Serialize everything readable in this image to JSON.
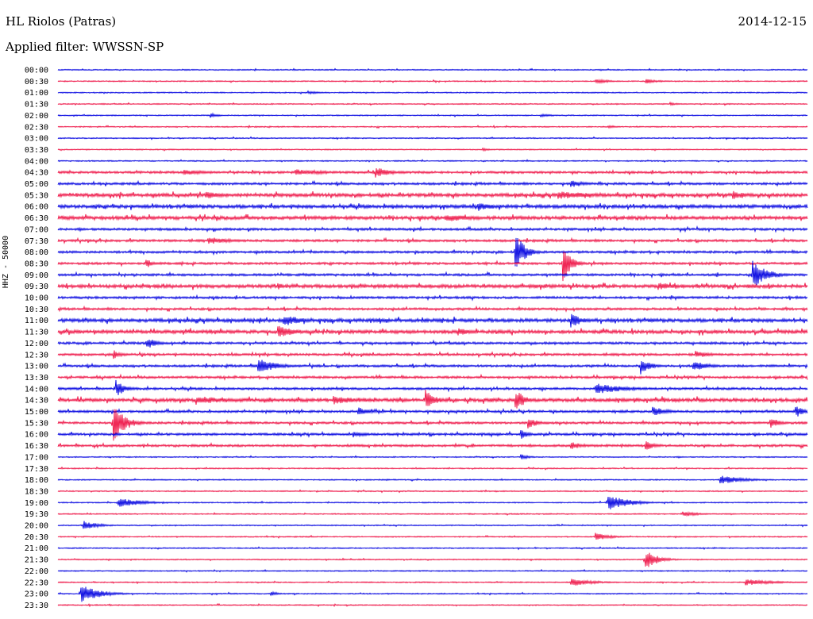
{
  "header": {
    "station": "HL Riolos (Patras)",
    "date": "2014-12-15",
    "filter": "Applied filter: WWSSN-SP"
  },
  "y_axis_label": "HHZ - 50000",
  "colors": {
    "even_row": "#0000e0",
    "odd_row": "#ee1144"
  },
  "chart_data": {
    "type": "line",
    "title": "HL Riolos (Patras)",
    "subtitle": "Applied filter: WWSSN-SP",
    "ylabel": "HHZ - 50000",
    "row_labels": [
      "00:00",
      "00:30",
      "01:00",
      "01:30",
      "02:00",
      "02:30",
      "03:00",
      "03:30",
      "04:00",
      "04:30",
      "05:00",
      "05:30",
      "06:00",
      "06:30",
      "07:00",
      "07:30",
      "08:00",
      "08:30",
      "09:00",
      "09:30",
      "10:00",
      "10:30",
      "11:00",
      "11:30",
      "12:00",
      "12:30",
      "13:00",
      "13:30",
      "14:00",
      "14:30",
      "15:00",
      "15:30",
      "16:00",
      "16:30",
      "17:00",
      "17:30",
      "18:00",
      "18:30",
      "19:00",
      "19:30",
      "20:00",
      "20:30",
      "21:00",
      "21:30",
      "22:00",
      "22:30",
      "23:00",
      "23:30"
    ],
    "row_minutes": 30,
    "noise_level": [
      1,
      1,
      1,
      1,
      1,
      1,
      1,
      1,
      1,
      2,
      2,
      3,
      3,
      3,
      2,
      2,
      2,
      2,
      2,
      3,
      2,
      2,
      3,
      3,
      2,
      2,
      2,
      2,
      2,
      3,
      2,
      2,
      2,
      2,
      1,
      1,
      1,
      1,
      1,
      1,
      1,
      1,
      1,
      1,
      1,
      1,
      1,
      1
    ],
    "events": [
      {
        "row": 1,
        "minute": 21.5,
        "amp": 3,
        "dur": 1.0
      },
      {
        "row": 1,
        "minute": 23.5,
        "amp": 3,
        "dur": 1.0
      },
      {
        "row": 2,
        "minute": 10.0,
        "amp": 2,
        "dur": 1.0
      },
      {
        "row": 3,
        "minute": 24.5,
        "amp": 2,
        "dur": 0.6
      },
      {
        "row": 4,
        "minute": 6.1,
        "amp": 3,
        "dur": 0.6
      },
      {
        "row": 4,
        "minute": 19.3,
        "amp": 2,
        "dur": 1.0
      },
      {
        "row": 5,
        "minute": 22.0,
        "amp": 2,
        "dur": 0.6
      },
      {
        "row": 7,
        "minute": 17.0,
        "amp": 2,
        "dur": 0.6
      },
      {
        "row": 9,
        "minute": 5.0,
        "amp": 4,
        "dur": 1.5
      },
      {
        "row": 9,
        "minute": 9.5,
        "amp": 4,
        "dur": 2.5
      },
      {
        "row": 9,
        "minute": 12.7,
        "amp": 7,
        "dur": 1.0
      },
      {
        "row": 10,
        "minute": 20.5,
        "amp": 5,
        "dur": 1.0
      },
      {
        "row": 11,
        "minute": 5.9,
        "amp": 5,
        "dur": 1.2
      },
      {
        "row": 11,
        "minute": 20.0,
        "amp": 5,
        "dur": 3.0
      },
      {
        "row": 11,
        "minute": 27.0,
        "amp": 6,
        "dur": 0.8
      },
      {
        "row": 12,
        "minute": 16.8,
        "amp": 6,
        "dur": 1.0
      },
      {
        "row": 13,
        "minute": 15.5,
        "amp": 5,
        "dur": 2.0
      },
      {
        "row": 15,
        "minute": 6.0,
        "amp": 5,
        "dur": 1.5
      },
      {
        "row": 16,
        "minute": 18.3,
        "amp": 26,
        "dur": 0.6
      },
      {
        "row": 17,
        "minute": 3.5,
        "amp": 7,
        "dur": 0.5
      },
      {
        "row": 17,
        "minute": 20.2,
        "amp": 25,
        "dur": 0.5
      },
      {
        "row": 18,
        "minute": 27.8,
        "amp": 18,
        "dur": 0.9
      },
      {
        "row": 19,
        "minute": 8.8,
        "amp": 5,
        "dur": 0.4
      },
      {
        "row": 19,
        "minute": 24.0,
        "amp": 5,
        "dur": 1.5
      },
      {
        "row": 22,
        "minute": 9.0,
        "amp": 8,
        "dur": 1.2
      },
      {
        "row": 22,
        "minute": 20.5,
        "amp": 10,
        "dur": 0.8
      },
      {
        "row": 23,
        "minute": 8.8,
        "amp": 8,
        "dur": 1.2
      },
      {
        "row": 23,
        "minute": 16.0,
        "amp": 5,
        "dur": 1.0
      },
      {
        "row": 24,
        "minute": 3.5,
        "amp": 5,
        "dur": 1.0
      },
      {
        "row": 24,
        "minute": 3.6,
        "amp": 7,
        "dur": 0.6
      },
      {
        "row": 25,
        "minute": 2.2,
        "amp": 6,
        "dur": 0.6
      },
      {
        "row": 25,
        "minute": 25.5,
        "amp": 5,
        "dur": 1.0
      },
      {
        "row": 26,
        "minute": 8.0,
        "amp": 10,
        "dur": 1.2
      },
      {
        "row": 26,
        "minute": 23.3,
        "amp": 12,
        "dur": 0.6
      },
      {
        "row": 26,
        "minute": 25.4,
        "amp": 7,
        "dur": 1.0
      },
      {
        "row": 28,
        "minute": 2.3,
        "amp": 12,
        "dur": 0.6
      },
      {
        "row": 28,
        "minute": 21.5,
        "amp": 7,
        "dur": 2.0
      },
      {
        "row": 29,
        "minute": 5.5,
        "amp": 6,
        "dur": 2.0
      },
      {
        "row": 29,
        "minute": 11.0,
        "amp": 6,
        "dur": 2.0
      },
      {
        "row": 29,
        "minute": 14.7,
        "amp": 15,
        "dur": 0.6
      },
      {
        "row": 29,
        "minute": 18.3,
        "amp": 15,
        "dur": 0.6
      },
      {
        "row": 30,
        "minute": 12.0,
        "amp": 6,
        "dur": 0.8
      },
      {
        "row": 30,
        "minute": 23.8,
        "amp": 6,
        "dur": 1.0
      },
      {
        "row": 30,
        "minute": 29.5,
        "amp": 9,
        "dur": 0.6
      },
      {
        "row": 31,
        "minute": 2.2,
        "amp": 24,
        "dur": 0.8
      },
      {
        "row": 31,
        "minute": 18.8,
        "amp": 9,
        "dur": 0.6
      },
      {
        "row": 31,
        "minute": 28.5,
        "amp": 8,
        "dur": 0.6
      },
      {
        "row": 32,
        "minute": 11.8,
        "amp": 4,
        "dur": 1.0
      },
      {
        "row": 32,
        "minute": 18.5,
        "amp": 7,
        "dur": 0.5
      },
      {
        "row": 33,
        "minute": 20.5,
        "amp": 5,
        "dur": 1.0
      },
      {
        "row": 33,
        "minute": 23.5,
        "amp": 6,
        "dur": 0.8
      },
      {
        "row": 34,
        "minute": 18.5,
        "amp": 4,
        "dur": 0.6
      },
      {
        "row": 36,
        "minute": 26.5,
        "amp": 6,
        "dur": 1.5
      },
      {
        "row": 38,
        "minute": 2.4,
        "amp": 6,
        "dur": 1.6
      },
      {
        "row": 38,
        "minute": 22.0,
        "amp": 12,
        "dur": 1.2
      },
      {
        "row": 39,
        "minute": 25.0,
        "amp": 4,
        "dur": 1.0
      },
      {
        "row": 40,
        "minute": 1.0,
        "amp": 6,
        "dur": 1.0
      },
      {
        "row": 41,
        "minute": 21.5,
        "amp": 5,
        "dur": 1.0
      },
      {
        "row": 43,
        "minute": 23.5,
        "amp": 13,
        "dur": 0.8
      },
      {
        "row": 45,
        "minute": 20.5,
        "amp": 5,
        "dur": 1.5
      },
      {
        "row": 45,
        "minute": 27.5,
        "amp": 4,
        "dur": 2.0
      },
      {
        "row": 46,
        "minute": 0.9,
        "amp": 12,
        "dur": 1.2
      },
      {
        "row": 46,
        "minute": 8.5,
        "amp": 3,
        "dur": 0.5
      }
    ]
  }
}
